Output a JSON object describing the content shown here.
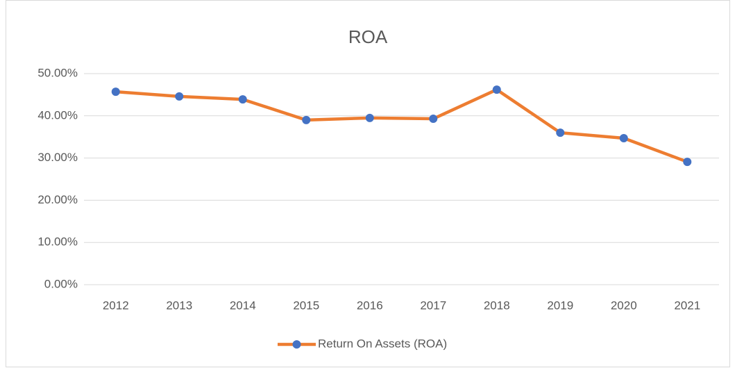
{
  "chart_data": {
    "type": "line",
    "title": "ROA",
    "categories": [
      "2012",
      "2013",
      "2014",
      "2015",
      "2016",
      "2017",
      "2018",
      "2019",
      "2020",
      "2021"
    ],
    "series": [
      {
        "name": "Return On Assets (ROA)",
        "color": "#ed7d31",
        "marker_color": "#4472c4",
        "values": [
          45.7,
          44.6,
          43.9,
          39.0,
          39.5,
          39.3,
          46.2,
          36.0,
          34.7,
          29.1
        ]
      }
    ],
    "ylim": [
      0,
      50
    ],
    "yticks": [
      {
        "value": 0,
        "label": "0.00%"
      },
      {
        "value": 10,
        "label": "10.00%"
      },
      {
        "value": 20,
        "label": "20.00%"
      },
      {
        "value": 30,
        "label": "30.00%"
      },
      {
        "value": 40,
        "label": "40.00%"
      },
      {
        "value": 50,
        "label": "50.00%"
      }
    ],
    "grid": true,
    "legend": "bottom"
  }
}
